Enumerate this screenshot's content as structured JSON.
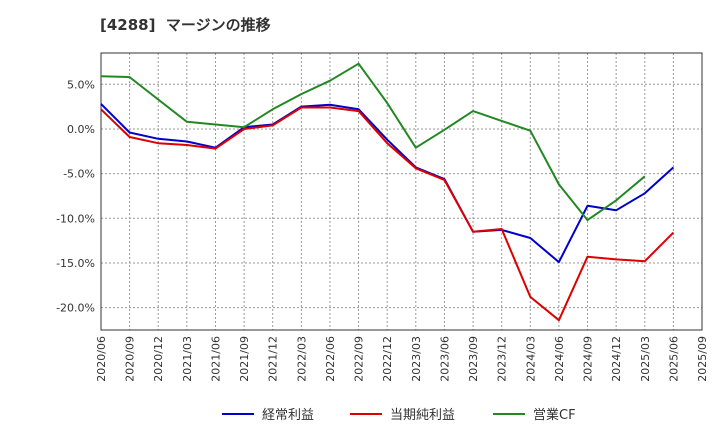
{
  "title": "[4288]  マージンの推移",
  "chart_data": {
    "type": "line",
    "title": "[4288]  マージンの推移",
    "xlabel": "",
    "ylabel": "",
    "x": [
      "2020/06",
      "2020/09",
      "2020/12",
      "2021/03",
      "2021/06",
      "2021/09",
      "2021/12",
      "2022/03",
      "2022/06",
      "2022/09",
      "2022/12",
      "2023/03",
      "2023/06",
      "2023/09",
      "2023/12",
      "2024/03",
      "2024/06",
      "2024/09",
      "2024/12",
      "2025/03",
      "2025/06",
      "2025/09"
    ],
    "ylim": [
      -22.5,
      8.5
    ],
    "yticks": [
      5.0,
      0.0,
      -5.0,
      -10.0,
      -15.0,
      -20.0
    ],
    "ytick_labels": [
      "5.0%",
      "0.0%",
      "-5.0%",
      "-10.0%",
      "-15.0%",
      "-20.0%"
    ],
    "grid": true,
    "legend_position": "bottom",
    "series": [
      {
        "name": "経常利益",
        "color": "#0000cc",
        "values": [
          2.8,
          -0.4,
          -1.1,
          -1.4,
          -2.1,
          0.2,
          0.5,
          2.5,
          2.7,
          2.2,
          -1.2,
          -4.3,
          -5.6,
          -11.5,
          -11.3,
          -12.2,
          -14.9,
          -8.6,
          -9.1,
          -7.2,
          -4.3,
          null
        ]
      },
      {
        "name": "当期純利益",
        "color": "#dd0000",
        "values": [
          2.2,
          -0.9,
          -1.6,
          -1.8,
          -2.2,
          0.0,
          0.4,
          2.4,
          2.4,
          2.0,
          -1.6,
          -4.4,
          -5.7,
          -11.5,
          -11.2,
          -18.8,
          -21.4,
          -14.3,
          -14.6,
          -14.8,
          -11.6,
          null
        ]
      },
      {
        "name": "営業CF",
        "color": "#228822",
        "values": [
          5.9,
          5.8,
          3.3,
          0.8,
          0.5,
          0.2,
          2.2,
          3.9,
          5.4,
          7.3,
          2.9,
          -2.1,
          -0.1,
          2.0,
          0.9,
          -0.2,
          -6.2,
          -10.2,
          -8.0,
          -5.3,
          null,
          null
        ]
      }
    ]
  }
}
